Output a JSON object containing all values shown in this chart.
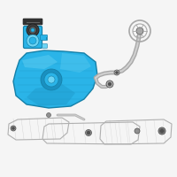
{
  "background_color": "#f5f5f5",
  "tank_fill": "#2ab4e8",
  "tank_edge": "#1580a8",
  "tank_dark": "#1a90c0",
  "pump_fill": "#2ab4e8",
  "pump_edge": "#1580a8",
  "pump_dark": "#1a7090",
  "pump_cap": "#404040",
  "gasket_color": "#303030",
  "pipe_color": "#a8a8a8",
  "pipe_light": "#d0d0d0",
  "bracket_color": "#b0b0b0",
  "bolt_color": "#909090",
  "bolt_dark": "#505050",
  "highlight": "#6dd4f4",
  "figsize": [
    2.0,
    2.0
  ],
  "dpi": 100
}
